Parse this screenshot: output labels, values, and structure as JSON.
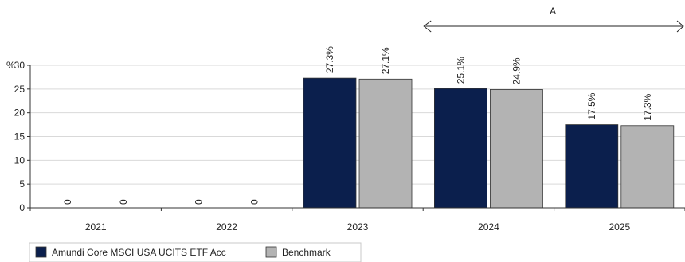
{
  "chart_data": {
    "type": "bar",
    "ylabel": "%",
    "ylim": [
      0,
      30
    ],
    "yticks": [
      0,
      5,
      10,
      15,
      20,
      25,
      30
    ],
    "categories": [
      "2021",
      "2022",
      "2023",
      "2024",
      "2025"
    ],
    "series": [
      {
        "name": "Amundi Core MSCI USA UCITS ETF Acc",
        "color": "#0b1f4d",
        "values": [
          0,
          0,
          27.3,
          25.1,
          17.5
        ],
        "labels": [
          "0",
          "0",
          "27.3%",
          "25.1%",
          "17.5%"
        ]
      },
      {
        "name": "Benchmark",
        "color": "#b3b3b3",
        "values": [
          0,
          0,
          27.1,
          24.9,
          17.3
        ],
        "labels": [
          "0",
          "0",
          "27.1%",
          "24.9%",
          "17.3%"
        ]
      }
    ],
    "annotation": {
      "label": "A",
      "from_category": "2024",
      "to_category": "2025"
    },
    "legend_position": "bottom-left",
    "grid": true
  }
}
